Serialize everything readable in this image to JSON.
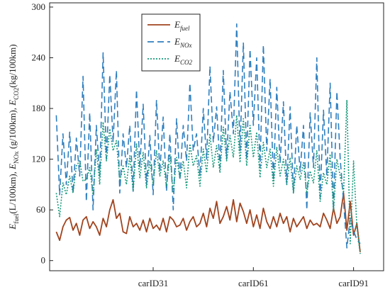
{
  "chart_data": {
    "type": "line",
    "title": "",
    "ylabel_parts": [
      {
        "base": "E",
        "sub": "fuel",
        "rest": "(L/100km), "
      },
      {
        "base": "E",
        "sub": "NOx",
        "rest": " (g/100km), "
      },
      {
        "base": "E",
        "sub": "CO2",
        "rest": "(kg/100km)"
      }
    ],
    "xlabel": "",
    "ylim": [
      -12,
      305
    ],
    "xlim": [
      0,
      100
    ],
    "yticks": [
      0,
      60,
      120,
      180,
      240,
      300
    ],
    "xticks": [
      {
        "value": 31,
        "label": "carID31"
      },
      {
        "value": 61,
        "label": "carID61"
      },
      {
        "value": 91,
        "label": "carID91"
      }
    ],
    "grid": false,
    "legend_position": "top-center",
    "series": [
      {
        "key": "fuel",
        "legend_base": "E",
        "legend_sub": "fuel",
        "color": "#a0441f",
        "dash": "",
        "x": [
          2,
          3,
          4,
          5,
          6,
          7,
          8,
          9,
          10,
          11,
          12,
          13,
          14,
          15,
          16,
          17,
          18,
          19,
          20,
          21,
          22,
          23,
          24,
          25,
          26,
          27,
          28,
          29,
          30,
          31,
          32,
          33,
          34,
          35,
          36,
          37,
          38,
          39,
          40,
          41,
          42,
          43,
          44,
          45,
          46,
          47,
          48,
          49,
          50,
          51,
          52,
          53,
          54,
          55,
          56,
          57,
          58,
          59,
          60,
          61,
          62,
          63,
          64,
          65,
          66,
          67,
          68,
          69,
          70,
          71,
          72,
          73,
          74,
          75,
          76,
          77,
          78,
          79,
          80,
          81,
          82,
          83,
          84,
          85,
          86,
          87,
          88,
          89,
          90,
          91,
          92,
          93
        ],
        "values": [
          34,
          24,
          40,
          48,
          51,
          36,
          44,
          30,
          48,
          52,
          38,
          46,
          40,
          30,
          50,
          40,
          60,
          72,
          50,
          56,
          34,
          32,
          52,
          40,
          44,
          36,
          48,
          34,
          50,
          38,
          42,
          36,
          50,
          34,
          52,
          48,
          40,
          42,
          50,
          36,
          46,
          52,
          40,
          44,
          56,
          40,
          62,
          50,
          70,
          44,
          52,
          64,
          48,
          72,
          46,
          68,
          58,
          44,
          60,
          40,
          54,
          38,
          62,
          46,
          38,
          52,
          40,
          56,
          44,
          52,
          34,
          50,
          40,
          46,
          52,
          38,
          48,
          42,
          44,
          40,
          56,
          48,
          38,
          62,
          44,
          52,
          80,
          36,
          70,
          30,
          44,
          10
        ]
      },
      {
        "key": "nox",
        "legend_base": "E",
        "legend_sub": "NOx",
        "color": "#2f7fbf",
        "dash": "9,5",
        "x": [
          2,
          3,
          4,
          5,
          6,
          7,
          8,
          9,
          10,
          11,
          12,
          13,
          14,
          15,
          16,
          17,
          18,
          19,
          20,
          21,
          22,
          23,
          24,
          25,
          26,
          27,
          28,
          29,
          30,
          31,
          32,
          33,
          34,
          35,
          36,
          37,
          38,
          39,
          40,
          41,
          42,
          43,
          44,
          45,
          46,
          47,
          48,
          49,
          50,
          51,
          52,
          53,
          54,
          55,
          56,
          57,
          58,
          59,
          60,
          61,
          62,
          63,
          64,
          65,
          66,
          67,
          68,
          69,
          70,
          71,
          72,
          73,
          74,
          75,
          76,
          77,
          78,
          79,
          80,
          81,
          82,
          83,
          84,
          85,
          86,
          87,
          88,
          89,
          90,
          91,
          92,
          93
        ],
        "values": [
          172,
          78,
          150,
          90,
          152,
          80,
          145,
          100,
          218,
          70,
          175,
          60,
          160,
          100,
          246,
          120,
          220,
          140,
          225,
          80,
          150,
          110,
          160,
          82,
          202,
          110,
          185,
          90,
          148,
          78,
          190,
          105,
          170,
          82,
          150,
          60,
          168,
          95,
          160,
          118,
          210,
          130,
          150,
          100,
          180,
          120,
          230,
          140,
          182,
          110,
          225,
          120,
          200,
          150,
          280,
          130,
          258,
          120,
          250,
          160,
          240,
          110,
          255,
          130,
          215,
          95,
          205,
          115,
          188,
          90,
          182,
          80,
          160,
          105,
          160,
          60,
          175,
          110,
          240,
          75,
          178,
          100,
          210,
          60,
          200,
          120,
          70,
          15,
          50,
          35,
          25,
          20
        ]
      },
      {
        "key": "co2",
        "legend_base": "E",
        "legend_sub": "CO2",
        "color": "#1a9a7a",
        "dash": "2,2",
        "x": [
          2,
          3,
          4,
          5,
          6,
          7,
          8,
          9,
          10,
          11,
          12,
          13,
          14,
          15,
          16,
          17,
          18,
          19,
          20,
          21,
          22,
          23,
          24,
          25,
          26,
          27,
          28,
          29,
          30,
          31,
          32,
          33,
          34,
          35,
          36,
          37,
          38,
          39,
          40,
          41,
          42,
          43,
          44,
          45,
          46,
          47,
          48,
          49,
          50,
          51,
          52,
          53,
          54,
          55,
          56,
          57,
          58,
          59,
          60,
          61,
          62,
          63,
          64,
          65,
          66,
          67,
          68,
          69,
          70,
          71,
          72,
          73,
          74,
          75,
          76,
          77,
          78,
          79,
          80,
          81,
          82,
          83,
          84,
          85,
          86,
          87,
          88,
          89,
          90,
          91,
          92,
          93
        ],
        "values": [
          80,
          52,
          92,
          78,
          100,
          80,
          112,
          118,
          94,
          96,
          110,
          78,
          132,
          90,
          164,
          118,
          156,
          130,
          142,
          94,
          112,
          90,
          124,
          82,
          138,
          98,
          128,
          86,
          118,
          90,
          130,
          100,
          118,
          88,
          126,
          80,
          122,
          98,
          118,
          86,
          138,
          112,
          124,
          88,
          132,
          104,
          150,
          110,
          136,
          104,
          158,
          118,
          148,
          122,
          172,
          116,
          168,
          112,
          160,
          122,
          152,
          98,
          140,
          110,
          132,
          88,
          134,
          100,
          120,
          90,
          122,
          80,
          112,
          96,
          116,
          80,
          106,
          92,
          130,
          70,
          104,
          90,
          126,
          58,
          120,
          100,
          80,
          190,
          20,
          118,
          40,
          8
        ]
      }
    ]
  }
}
